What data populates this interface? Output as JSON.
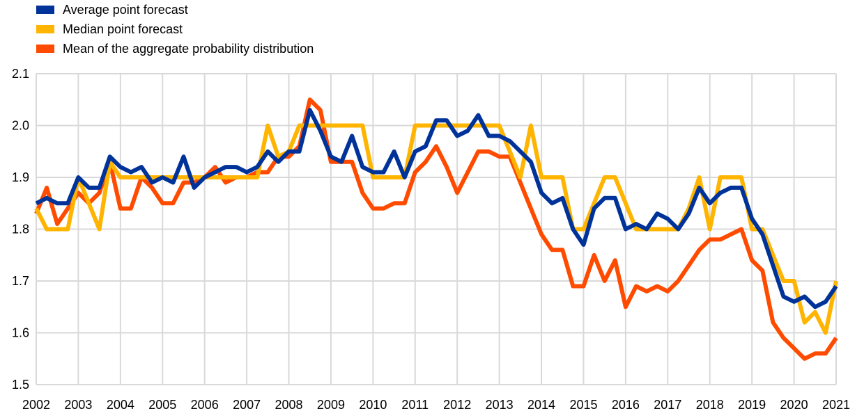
{
  "chart_data": {
    "type": "line",
    "title": "",
    "xlabel": "",
    "ylabel": "",
    "ylim": [
      1.5,
      2.1
    ],
    "xlim": [
      2002,
      2021
    ],
    "y_ticks": [
      "1.5",
      "1.6",
      "1.7",
      "1.8",
      "1.9",
      "2.0",
      "2.1"
    ],
    "x_ticks": [
      "2002",
      "2003",
      "2004",
      "2005",
      "2006",
      "2007",
      "2008",
      "2009",
      "2010",
      "2011",
      "2012",
      "2013",
      "2014",
      "2015",
      "2016",
      "2017",
      "2018",
      "2019",
      "2020",
      "2021"
    ],
    "grid": "vertical and horizontal",
    "legend_position": "top-left",
    "series": [
      {
        "name": "Average point forecast",
        "color": "#003399",
        "values": [
          1.85,
          1.86,
          1.85,
          1.85,
          1.9,
          1.88,
          1.88,
          1.94,
          1.92,
          1.91,
          1.92,
          1.89,
          1.9,
          1.89,
          1.94,
          1.88,
          1.9,
          1.91,
          1.92,
          1.92,
          1.91,
          1.92,
          1.95,
          1.93,
          1.95,
          1.95,
          2.03,
          1.99,
          1.94,
          1.93,
          1.98,
          1.92,
          1.91,
          1.91,
          1.95,
          1.9,
          1.95,
          1.96,
          2.01,
          2.01,
          1.98,
          1.99,
          2.02,
          1.98,
          1.98,
          1.97,
          1.95,
          1.93,
          1.87,
          1.85,
          1.86,
          1.8,
          1.77,
          1.84,
          1.86,
          1.86,
          1.8,
          1.81,
          1.8,
          1.83,
          1.82,
          1.8,
          1.83,
          1.88,
          1.85,
          1.87,
          1.88,
          1.88,
          1.82,
          1.79,
          1.73,
          1.67,
          1.66,
          1.67,
          1.65,
          1.66,
          1.69
        ]
      },
      {
        "name": "Median point forecast",
        "color": "#ffb400",
        "values": [
          1.84,
          1.8,
          1.8,
          1.8,
          1.9,
          1.85,
          1.8,
          1.93,
          1.9,
          1.9,
          1.9,
          1.9,
          1.9,
          1.9,
          1.9,
          1.9,
          1.9,
          1.9,
          1.9,
          1.9,
          1.9,
          1.9,
          2.0,
          1.94,
          1.95,
          2.0,
          2.0,
          2.0,
          2.0,
          2.0,
          2.0,
          2.0,
          1.9,
          1.9,
          1.9,
          1.9,
          2.0,
          2.0,
          2.0,
          2.0,
          2.0,
          2.0,
          2.0,
          2.0,
          2.0,
          1.95,
          1.9,
          2.0,
          1.9,
          1.9,
          1.9,
          1.8,
          1.8,
          1.85,
          1.9,
          1.9,
          1.85,
          1.8,
          1.8,
          1.8,
          1.8,
          1.8,
          1.84,
          1.9,
          1.8,
          1.9,
          1.9,
          1.9,
          1.8,
          1.8,
          1.75,
          1.7,
          1.7,
          1.62,
          1.64,
          1.6,
          1.7
        ]
      },
      {
        "name": "Mean of the aggregate probability distribution",
        "color": "#ff4b00",
        "values": [
          1.83,
          1.88,
          1.81,
          1.84,
          1.87,
          1.85,
          1.87,
          1.93,
          1.84,
          1.84,
          1.9,
          1.88,
          1.85,
          1.85,
          1.89,
          1.89,
          1.9,
          1.92,
          1.89,
          1.9,
          1.9,
          1.91,
          1.91,
          1.94,
          1.94,
          1.96,
          2.05,
          2.03,
          1.93,
          1.93,
          1.93,
          1.87,
          1.84,
          1.84,
          1.85,
          1.85,
          1.91,
          1.93,
          1.96,
          1.92,
          1.87,
          1.91,
          1.95,
          1.95,
          1.94,
          1.94,
          1.89,
          1.84,
          1.79,
          1.76,
          1.76,
          1.69,
          1.69,
          1.75,
          1.7,
          1.74,
          1.65,
          1.69,
          1.68,
          1.69,
          1.68,
          1.7,
          1.73,
          1.76,
          1.78,
          1.78,
          1.79,
          1.8,
          1.74,
          1.72,
          1.62,
          1.59,
          1.57,
          1.55,
          1.56,
          1.56,
          1.59
        ]
      }
    ]
  }
}
